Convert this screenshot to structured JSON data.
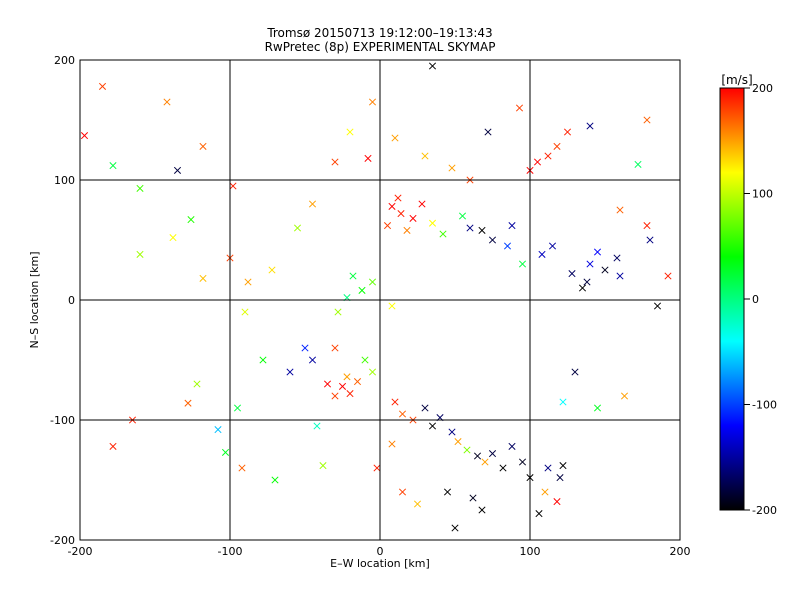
{
  "chart_data": {
    "type": "scatter",
    "title": "Tromsø 20150713 19:12:00–19:13:43",
    "subtitle": "RwPretec (8p) EXPERIMENTAL SKYMAP",
    "xlabel": "E–W location [km]",
    "ylabel": "N–S location [km]",
    "xlim": [
      -200,
      200
    ],
    "ylim": [
      -200,
      200
    ],
    "xticks": [
      -200,
      -100,
      0,
      100,
      200
    ],
    "yticks": [
      -200,
      -100,
      0,
      100,
      200
    ],
    "grid": true,
    "colorbar": {
      "label": "[m/s]",
      "min": -200,
      "max": 200,
      "ticks": [
        200,
        100,
        0,
        -100,
        -200
      ],
      "colors": [
        "#ff0000",
        "#ffff00",
        "#00ff00",
        "#00ffff",
        "#0000ff",
        "#000000"
      ]
    },
    "markers": {
      "small": "dot",
      "large": "cross"
    },
    "points": [
      [
        -185,
        178,
        180,
        1
      ],
      [
        -142,
        165,
        160,
        1
      ],
      [
        -118,
        128,
        170,
        1
      ],
      [
        -178,
        112,
        20,
        1
      ],
      [
        -160,
        93,
        60,
        1
      ],
      [
        -135,
        108,
        -180,
        1
      ],
      [
        -98,
        95,
        190,
        1
      ],
      [
        -126,
        67,
        50,
        1
      ],
      [
        -138,
        52,
        120,
        1
      ],
      [
        -160,
        38,
        90,
        1
      ],
      [
        -118,
        18,
        140,
        1
      ],
      [
        -122,
        -70,
        90,
        1
      ],
      [
        -128,
        -86,
        170,
        1
      ],
      [
        -178,
        -122,
        190,
        1
      ],
      [
        -108,
        -108,
        -60,
        1
      ],
      [
        -103,
        -127,
        30,
        1
      ],
      [
        -70,
        -150,
        40,
        1
      ],
      [
        -92,
        -140,
        170,
        1
      ],
      [
        -197,
        137,
        200,
        1
      ],
      [
        -165,
        -100,
        190,
        1
      ],
      [
        -55,
        60,
        90,
        1
      ],
      [
        -45,
        80,
        150,
        1
      ],
      [
        -72,
        25,
        130,
        1
      ],
      [
        -90,
        -10,
        110,
        1
      ],
      [
        -42,
        -105,
        -20,
        1
      ],
      [
        -38,
        -138,
        90,
        1
      ],
      [
        -60,
        -60,
        -150,
        1
      ],
      [
        -30,
        -40,
        180,
        1
      ],
      [
        8,
        78,
        200,
        1
      ],
      [
        14,
        72,
        190,
        1
      ],
      [
        22,
        68,
        200,
        1
      ],
      [
        5,
        62,
        180,
        1
      ],
      [
        28,
        80,
        200,
        1
      ],
      [
        18,
        58,
        160,
        1
      ],
      [
        12,
        85,
        190,
        1
      ],
      [
        35,
        64,
        120,
        1
      ],
      [
        42,
        55,
        60,
        1
      ],
      [
        55,
        70,
        20,
        1
      ],
      [
        60,
        60,
        -160,
        1
      ],
      [
        68,
        58,
        -200,
        1
      ],
      [
        75,
        50,
        -180,
        1
      ],
      [
        85,
        45,
        -100,
        1
      ],
      [
        88,
        62,
        -150,
        1
      ],
      [
        95,
        30,
        20,
        1
      ],
      [
        105,
        115,
        200,
        1
      ],
      [
        112,
        120,
        190,
        1
      ],
      [
        118,
        128,
        180,
        1
      ],
      [
        100,
        108,
        200,
        1
      ],
      [
        125,
        140,
        190,
        1
      ],
      [
        140,
        145,
        -160,
        1
      ],
      [
        172,
        113,
        10,
        1
      ],
      [
        178,
        150,
        170,
        1
      ],
      [
        128,
        22,
        -170,
        1
      ],
      [
        140,
        30,
        -130,
        1
      ],
      [
        150,
        25,
        -190,
        1
      ],
      [
        135,
        10,
        -200,
        1
      ],
      [
        160,
        20,
        -150,
        1
      ],
      [
        158,
        35,
        -170,
        1
      ],
      [
        145,
        40,
        -120,
        1
      ],
      [
        138,
        15,
        -180,
        1
      ],
      [
        115,
        45,
        -150,
        1
      ],
      [
        108,
        38,
        -140,
        1
      ],
      [
        -25,
        -72,
        200,
        1
      ],
      [
        -20,
        -78,
        190,
        1
      ],
      [
        -30,
        -80,
        180,
        1
      ],
      [
        -15,
        -68,
        170,
        1
      ],
      [
        -35,
        -70,
        200,
        1
      ],
      [
        -22,
        -64,
        150,
        1
      ],
      [
        -45,
        -50,
        -150,
        1
      ],
      [
        -50,
        -40,
        -110,
        1
      ],
      [
        10,
        -85,
        190,
        1
      ],
      [
        15,
        -95,
        170,
        1
      ],
      [
        22,
        -100,
        180,
        1
      ],
      [
        30,
        -90,
        -180,
        1
      ],
      [
        35,
        -105,
        -200,
        1
      ],
      [
        40,
        -98,
        -170,
        1
      ],
      [
        48,
        -110,
        -160,
        1
      ],
      [
        52,
        -118,
        150,
        1
      ],
      [
        58,
        -125,
        80,
        1
      ],
      [
        65,
        -130,
        -190,
        1
      ],
      [
        70,
        -135,
        150,
        1
      ],
      [
        75,
        -128,
        -180,
        1
      ],
      [
        82,
        -140,
        -200,
        1
      ],
      [
        88,
        -122,
        -170,
        1
      ],
      [
        95,
        -135,
        -190,
        1
      ],
      [
        100,
        -148,
        -200,
        1
      ],
      [
        110,
        -160,
        150,
        1
      ],
      [
        118,
        -168,
        200,
        1
      ],
      [
        106,
        -178,
        -200,
        1
      ],
      [
        112,
        -140,
        -160,
        1
      ],
      [
        120,
        -148,
        -180,
        1
      ],
      [
        122,
        -138,
        -200,
        1
      ],
      [
        45,
        -160,
        -200,
        1
      ],
      [
        62,
        -165,
        -190,
        1
      ],
      [
        68,
        -175,
        -200,
        1
      ],
      [
        50,
        -190,
        -200,
        1
      ],
      [
        25,
        -170,
        140,
        1
      ],
      [
        15,
        -160,
        180,
        1
      ],
      [
        -2,
        -140,
        190,
        1
      ],
      [
        8,
        -120,
        160,
        1
      ],
      [
        -5,
        -60,
        90,
        1
      ],
      [
        -10,
        -50,
        60,
        1
      ],
      [
        -12,
        8,
        40,
        1
      ],
      [
        -18,
        20,
        20,
        1
      ],
      [
        -22,
        2,
        0,
        1
      ],
      [
        -5,
        15,
        70,
        1
      ],
      [
        8,
        -5,
        120,
        1
      ],
      [
        -28,
        -10,
        90,
        1
      ],
      [
        60,
        100,
        180,
        1
      ],
      [
        48,
        110,
        150,
        1
      ],
      [
        30,
        120,
        140,
        1
      ],
      [
        -8,
        118,
        200,
        1
      ],
      [
        10,
        135,
        150,
        1
      ],
      [
        -5,
        165,
        160,
        1
      ],
      [
        35,
        195,
        -200,
        1
      ],
      [
        -100,
        35,
        180,
        1
      ],
      [
        -88,
        15,
        150,
        1
      ],
      [
        -78,
        -50,
        40,
        1
      ],
      [
        -95,
        -90,
        20,
        1
      ],
      [
        180,
        50,
        -160,
        1
      ],
      [
        192,
        20,
        190,
        1
      ],
      [
        185,
        -5,
        -200,
        1
      ],
      [
        178,
        62,
        190,
        1
      ],
      [
        160,
        75,
        170,
        1
      ],
      [
        130,
        -60,
        -180,
        1
      ],
      [
        122,
        -85,
        -40,
        1
      ],
      [
        145,
        -90,
        30,
        1
      ],
      [
        163,
        -80,
        150,
        1
      ],
      [
        -20,
        140,
        120,
        1
      ],
      [
        -30,
        115,
        180,
        1
      ],
      [
        72,
        140,
        -180,
        1
      ],
      [
        93,
        160,
        180,
        1
      ]
    ]
  }
}
